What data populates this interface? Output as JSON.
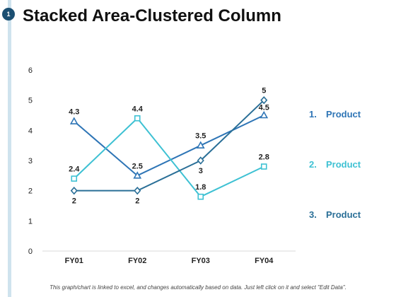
{
  "slide": {
    "number": "1",
    "title": "Stacked Area-Clustered Column"
  },
  "colors": {
    "accent_dark": "#1b4f72"
  },
  "footer_note": "This graph/chart is linked to excel, and changes automatically based on data. Just left click on it and select \"Edit Data\".",
  "chart_data": {
    "type": "line",
    "title": "",
    "xlabel": "",
    "ylabel": "",
    "categories": [
      "FY01",
      "FY02",
      "FY03",
      "FY04"
    ],
    "ylim": [
      0,
      6
    ],
    "yticks": [
      "0",
      "1",
      "2",
      "3",
      "4",
      "5",
      "6"
    ],
    "grid": false,
    "legend_position": "right",
    "series": [
      {
        "name": "Product",
        "legend_number": "1.",
        "color": "#2e75b6",
        "marker": "triangle",
        "values": [
          4.3,
          2.5,
          3.5,
          4.5
        ],
        "labels": [
          "4.3",
          "2.5",
          "3.5",
          "4.5"
        ]
      },
      {
        "name": "Product",
        "legend_number": "2.",
        "color": "#3ec1d3",
        "marker": "square",
        "values": [
          2.4,
          4.4,
          1.8,
          2.8
        ],
        "labels": [
          "2.4",
          "4.4",
          "1.8",
          "2.8"
        ]
      },
      {
        "name": "Product",
        "legend_number": "3.",
        "color": "#2a6f97",
        "marker": "diamond",
        "values": [
          2,
          2,
          3,
          5
        ],
        "labels": [
          "2",
          "2",
          "3",
          "5"
        ]
      }
    ]
  }
}
